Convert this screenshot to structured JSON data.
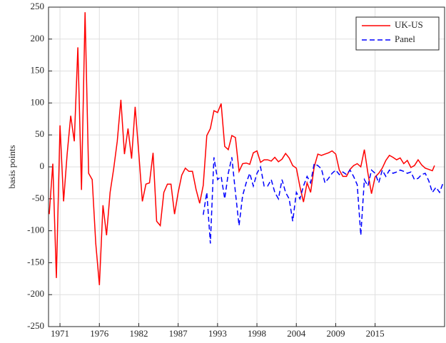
{
  "chart_data": {
    "type": "line",
    "ylabel": "basis points",
    "xlim": [
      1969.4,
      2024.7
    ],
    "ylim": [
      -250,
      250
    ],
    "xticks": [
      1971,
      {
        "value": 1976.5,
        "label": "1976"
      },
      1982,
      {
        "value": 1987.5,
        "label": "1987"
      },
      1993,
      {
        "value": 1998.5,
        "label": "1998"
      },
      2004,
      {
        "value": 2009.5,
        "label": "2009"
      },
      2015
    ],
    "yticks": [
      -250,
      -200,
      -150,
      -100,
      -50,
      0,
      50,
      100,
      150,
      200,
      250
    ],
    "grid": true,
    "legend": "upper right",
    "series": [
      {
        "name": "UK-US",
        "color": "#ff0000",
        "dash": false,
        "x": [
          1969.5,
          1970,
          1970.5,
          1971,
          1971.5,
          1972,
          1972.5,
          1973,
          1973.5,
          1974,
          1974.5,
          1975,
          1975.5,
          1976,
          1976.5,
          1977,
          1977.5,
          1978,
          1978.5,
          1979,
          1979.5,
          1980,
          1980.5,
          1981,
          1981.5,
          1982,
          1982.5,
          1983,
          1983.5,
          1984,
          1984.5,
          1985,
          1985.5,
          1986,
          1986.5,
          1987,
          1987.5,
          1988,
          1988.5,
          1989,
          1989.5,
          1990,
          1990.5,
          1991,
          1991.5,
          1992,
          1992.5,
          1993,
          1993.5,
          1994,
          1994.5,
          1995,
          1995.5,
          1996,
          1996.5,
          1997,
          1997.5,
          1998,
          1998.5,
          1999,
          1999.5,
          2000,
          2000.5,
          2001,
          2001.5,
          2002,
          2002.5,
          2003,
          2003.5,
          2004,
          2004.5,
          2005,
          2005.5,
          2006,
          2006.5,
          2007,
          2007.5,
          2008,
          2008.5,
          2009,
          2009.5,
          2010,
          2010.5,
          2011,
          2011.5,
          2012,
          2012.5,
          2013,
          2013.5,
          2014,
          2014.5,
          2015,
          2015.5,
          2016,
          2016.5,
          2017,
          2017.5,
          2018,
          2018.5,
          2019,
          2019.5,
          2020,
          2020.5,
          2021,
          2021.5,
          2022,
          2022.5,
          2023,
          2023.3
        ],
        "values": [
          -74,
          5,
          -174,
          65,
          -54,
          20,
          80,
          40,
          187,
          -36,
          242,
          -10,
          -20,
          -120,
          -185,
          -60,
          -107,
          -40,
          -3,
          40,
          105,
          20,
          60,
          13,
          94,
          21,
          -54,
          -27,
          -25,
          22,
          -85,
          -92,
          -40,
          -27,
          -27,
          -74,
          -40,
          -13,
          -2,
          -7,
          -7,
          -35,
          -57,
          -29,
          49,
          60,
          88,
          85,
          99,
          32,
          27,
          49,
          46,
          -7,
          5,
          6,
          4,
          22,
          25,
          7,
          11,
          11,
          9,
          15,
          8,
          12,
          21,
          14,
          2,
          -2,
          -31,
          -55,
          -25,
          -40,
          0,
          20,
          18,
          20,
          22,
          25,
          20,
          -5,
          -15,
          -15,
          -4,
          2,
          5,
          0,
          27,
          -10,
          -42,
          -16,
          -10,
          -2,
          10,
          18,
          15,
          11,
          14,
          5,
          10,
          -1,
          2,
          11,
          3,
          -2,
          -4,
          -6,
          2
        ]
      },
      {
        "name": "Panel",
        "color": "#0000ff",
        "dash": true,
        "x": [
          1991,
          1991.5,
          1992,
          1992.5,
          1993,
          1993.5,
          1994,
          1994.5,
          1995,
          1995.5,
          1996,
          1996.5,
          1997,
          1997.5,
          1998,
          1998.5,
          1999,
          1999.5,
          2000,
          2000.5,
          2001,
          2001.5,
          2002,
          2002.5,
          2003,
          2003.5,
          2004,
          2004.5,
          2005,
          2005.5,
          2006,
          2006.5,
          2007,
          2007.5,
          2008,
          2008.5,
          2009,
          2009.5,
          2010,
          2010.5,
          2011,
          2011.5,
          2012,
          2012.5,
          2013,
          2013.5,
          2014,
          2014.5,
          2015,
          2015.5,
          2016,
          2016.5,
          2017,
          2017.5,
          2018,
          2018.5,
          2019,
          2019.5,
          2020,
          2020.5,
          2021,
          2021.5,
          2022,
          2022.5,
          2023,
          2023.5,
          2024,
          2024.5
        ],
        "values": [
          -75,
          -40,
          -120,
          15,
          -20,
          -15,
          -50,
          -10,
          15,
          -40,
          -92,
          -45,
          -25,
          -10,
          -30,
          -10,
          0,
          -30,
          -30,
          -20,
          -40,
          -50,
          -20,
          -40,
          -50,
          -85,
          -40,
          -50,
          -30,
          -15,
          -25,
          5,
          2,
          -3,
          -25,
          -18,
          -10,
          -5,
          -12,
          -8,
          -12,
          -5,
          -15,
          -28,
          -107,
          -20,
          -30,
          -5,
          -10,
          -25,
          -5,
          -15,
          -5,
          -10,
          -8,
          -5,
          -7,
          -10,
          -8,
          -20,
          -18,
          -12,
          -10,
          -22,
          -40,
          -32,
          -40,
          -25
        ]
      }
    ]
  }
}
